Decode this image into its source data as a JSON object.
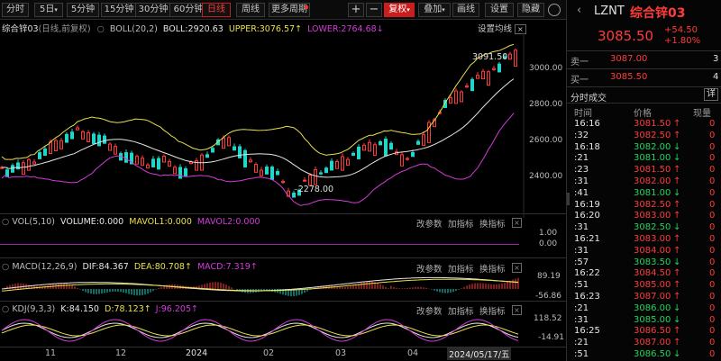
{
  "toolbar": {
    "periods": [
      "分时",
      "5日",
      "5分钟",
      "15分钟",
      "30分钟",
      "60分钟",
      "日线",
      "周线",
      "更多周期"
    ],
    "plus": "+",
    "minus": "−",
    "adjust": "复权",
    "overlay": "叠加",
    "draw": "画线",
    "settings": "设置",
    "dark": "隐藏"
  },
  "chart": {
    "title": "综合锌03",
    "mode": "(日线,前复权)",
    "boll_name": "BOLL(20,2)",
    "boll": "BOLL:2920.63",
    "upper": "UPPER:3076.57",
    "lower": "LOWER:2764.68",
    "settings_link": "设置均线",
    "price_high": "3091.50",
    "price_low": "2278.00",
    "y_ticks": [
      "3000.00",
      "2800.00",
      "2600.00",
      "2400.00"
    ],
    "vol": {
      "name": "VOL(5,10)",
      "volume": "VOLUME:0.000",
      "ma1": "MAVOL1:0.000",
      "ma2": "MAVOL2:0.000",
      "ticks": [
        "1.00",
        "0.00"
      ]
    },
    "macd": {
      "name": "MACD(12,26,9)",
      "dif": "DIF:84.367",
      "dea": "DEA:80.708",
      "macd": "MACD:7.319",
      "ticks": [
        "89.19",
        "-56.86"
      ]
    },
    "kdj": {
      "name": "KDJ(9,3,3)",
      "k": "K:84.150",
      "d": "D:78.123",
      "j": "J:96.205",
      "ticks": [
        "118.52",
        "-14.91"
      ]
    },
    "buttons": {
      "change": "改参数",
      "add": "加指标",
      "swap": "换指标"
    },
    "x_labels": [
      "11",
      "12",
      "2024",
      "02",
      "03",
      "04"
    ],
    "cursor_date": "2024/05/17/五",
    "colors": {
      "up": "#ff3b3b",
      "down": "#1fd6c8",
      "upper": "#e8e04a",
      "mid": "#e6e6e6",
      "lower": "#d23cd8"
    }
  },
  "panel": {
    "code": "LZNT",
    "name": "综合锌03",
    "price": "3085.50",
    "change": "+54.50",
    "change_pct": "+1.80%",
    "sell_label": "卖一",
    "sell_price": "3087.00",
    "sell_vol": "3",
    "buy_label": "买一",
    "buy_price": "3085.50",
    "buy_vol": "4",
    "ticks_title": "分时成交",
    "detail_btn": "详",
    "headers": [
      "时间",
      "价格",
      "现量"
    ],
    "trades": [
      {
        "time": "16:16",
        "price": "3081.50",
        "dir": "up",
        "vol": "0"
      },
      {
        "time": ":32",
        "price": "3082.50",
        "dir": "up",
        "vol": "0"
      },
      {
        "time": "16:18",
        "price": "3082.00",
        "dir": "down",
        "vol": "0"
      },
      {
        "time": ":21",
        "price": "3081.00",
        "dir": "down",
        "vol": "0"
      },
      {
        "time": ":23",
        "price": "3081.50",
        "dir": "up",
        "vol": "0"
      },
      {
        "time": ":31",
        "price": "3082.00",
        "dir": "up",
        "vol": "0"
      },
      {
        "time": ":41",
        "price": "3081.00",
        "dir": "down",
        "vol": "0"
      },
      {
        "time": "16:19",
        "price": "3082.50",
        "dir": "up",
        "vol": "0"
      },
      {
        "time": "16:20",
        "price": "3083.00",
        "dir": "up",
        "vol": "0"
      },
      {
        "time": ":31",
        "price": "3082.50",
        "dir": "down",
        "vol": "0"
      },
      {
        "time": "16:21",
        "price": "3083.00",
        "dir": "up",
        "vol": "0"
      },
      {
        "time": ":31",
        "price": "3084.00",
        "dir": "up",
        "vol": "0"
      },
      {
        "time": ":57",
        "price": "3083.50",
        "dir": "down",
        "vol": "0"
      },
      {
        "time": "16:22",
        "price": "3084.50",
        "dir": "up",
        "vol": "0"
      },
      {
        "time": ":51",
        "price": "3085.00",
        "dir": "up",
        "vol": "0"
      },
      {
        "time": "16:23",
        "price": "3087.00",
        "dir": "up",
        "vol": "0"
      },
      {
        "time": ":21",
        "price": "3086.00",
        "dir": "down",
        "vol": "0"
      },
      {
        "time": ":31",
        "price": "3085.00",
        "dir": "down",
        "vol": "0"
      },
      {
        "time": "16:25",
        "price": "3086.50",
        "dir": "up",
        "vol": "0"
      },
      {
        "time": ":21",
        "price": "3087.00",
        "dir": "up",
        "vol": "0"
      },
      {
        "time": ":51",
        "price": "3086.50",
        "dir": "down",
        "vol": "0"
      }
    ]
  }
}
